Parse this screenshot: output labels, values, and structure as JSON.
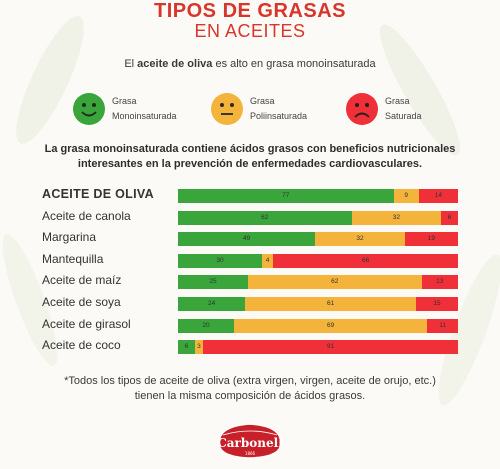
{
  "header": {
    "title_line1": "TIPOS DE GRASAS",
    "title_line2": "EN ACEITES"
  },
  "subtitle": {
    "prefix": "El ",
    "bold": "aceite de oliva",
    "suffix": " es alto en grasa monoinsaturada"
  },
  "legend": [
    {
      "line1": "Grasa",
      "line2": "Monoinsaturada",
      "color": "#3aa53a",
      "face": "smile"
    },
    {
      "line1": "Grasa",
      "line2": "Poliinsaturada",
      "color": "#f4b43c",
      "face": "neutral"
    },
    {
      "line1": "Grasa",
      "line2": "Saturada",
      "color": "#ef3038",
      "face": "sad"
    }
  ],
  "statement": {
    "line1": "La grasa monoinsaturada contiene ácidos grasos con beneficios nutricionales",
    "line2": "interesantes en la prevención de enfermedades cardiovasculares."
  },
  "chart_data": {
    "type": "bar",
    "stacked": true,
    "orientation": "horizontal",
    "categories": [
      "ACEITE DE OLIVA",
      "Aceite de canola",
      "Margarina",
      "Mantequilla",
      "Aceite de maíz",
      "Aceite de soya",
      "Aceite de girasol",
      "Aceite de coco"
    ],
    "series": [
      {
        "color": "#3aa53a",
        "values": [
          77,
          62,
          49,
          30,
          25,
          24,
          20,
          6
        ]
      },
      {
        "color": "#f4b43c",
        "values": [
          9,
          32,
          32,
          4,
          62,
          61,
          69,
          3
        ]
      },
      {
        "color": "#ef3038",
        "values": [
          14,
          6,
          19,
          66,
          13,
          15,
          11,
          91
        ]
      }
    ]
  },
  "footnote": {
    "line1": "*Todos los tipos de aceite de oliva (extra virgen, virgen, aceite de orujo, etc.)",
    "line2": "tienen la misma composición de ácidos grasos."
  },
  "brand": {
    "name": "Carbonell",
    "year": "1866",
    "color": "#c8202a"
  }
}
